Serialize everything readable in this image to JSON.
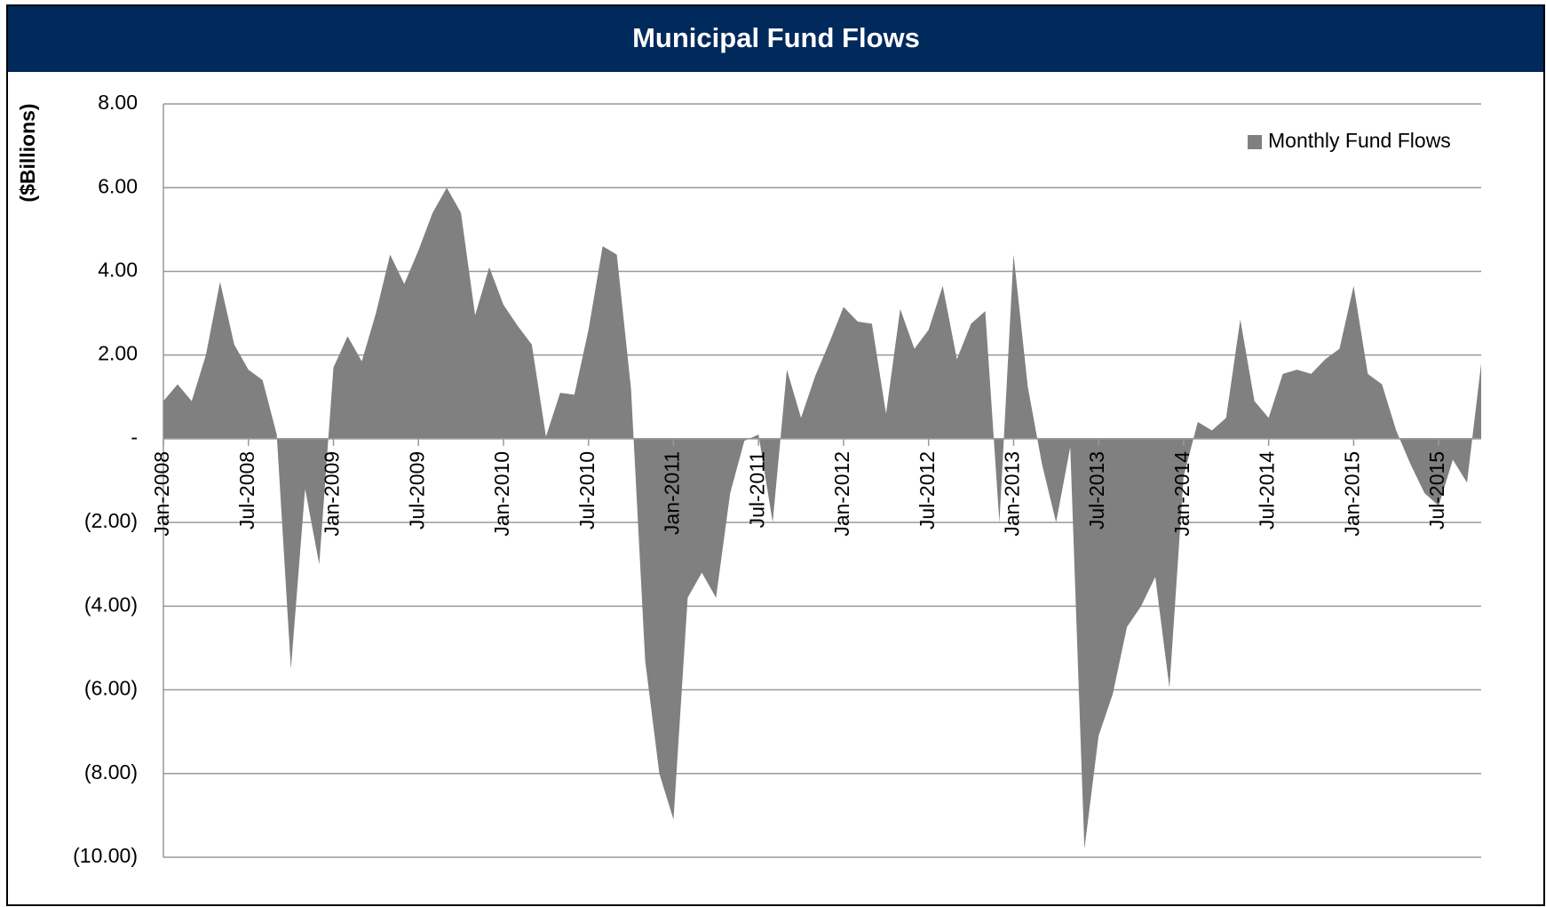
{
  "chart_data": {
    "type": "area",
    "title": "Municipal Fund Flows",
    "y_label": "($Billions)",
    "categories": [
      "Jan-2008",
      null,
      null,
      null,
      null,
      null,
      "Jul-2008",
      null,
      null,
      null,
      null,
      null,
      "Jan-2009",
      null,
      null,
      null,
      null,
      null,
      "Jul-2009",
      null,
      null,
      null,
      null,
      null,
      "Jan-2010",
      null,
      null,
      null,
      null,
      null,
      "Jul-2010",
      null,
      null,
      null,
      null,
      null,
      "Jan-2011",
      null,
      null,
      null,
      null,
      null,
      "Jul-2011",
      null,
      null,
      null,
      null,
      null,
      "Jan-2012",
      null,
      null,
      null,
      null,
      null,
      "Jul-2012",
      null,
      null,
      null,
      null,
      null,
      "Jan-2013",
      null,
      null,
      null,
      null,
      null,
      "Jul-2013",
      null,
      null,
      null,
      null,
      null,
      "Jan-2014",
      null,
      null,
      null,
      null,
      null,
      "Jul-2014",
      null,
      null,
      null,
      null,
      null,
      "Jan-2015",
      null,
      null,
      null,
      null,
      null,
      "Jul-2015",
      null,
      null,
      null
    ],
    "series": [
      {
        "name": "Monthly Fund Flows",
        "color": "#808080",
        "values": [
          0.9,
          1.3,
          0.9,
          2.0,
          3.75,
          2.25,
          1.65,
          1.4,
          0.1,
          -5.5,
          -1.2,
          -3.0,
          1.7,
          2.45,
          1.85,
          3.0,
          4.4,
          3.7,
          4.5,
          5.4,
          6.0,
          5.4,
          2.95,
          4.1,
          3.2,
          2.7,
          2.25,
          0.05,
          1.1,
          1.05,
          2.6,
          4.6,
          4.4,
          1.2,
          -5.3,
          -8.0,
          -9.1,
          -3.8,
          -3.2,
          -3.8,
          -1.3,
          -0.05,
          0.1,
          -2.0,
          1.65,
          0.5,
          1.5,
          2.3,
          3.15,
          2.8,
          2.75,
          0.6,
          3.1,
          2.15,
          2.6,
          3.65,
          1.9,
          2.75,
          3.05,
          -2.0,
          4.4,
          1.25,
          -0.6,
          -2.0,
          -0.2,
          -9.8,
          -7.1,
          -6.1,
          -4.5,
          -4.0,
          -3.3,
          -5.95,
          -0.9,
          0.4,
          0.2,
          0.5,
          2.85,
          0.9,
          0.5,
          1.55,
          1.65,
          1.55,
          1.9,
          2.15,
          3.65,
          1.55,
          1.3,
          0.2,
          -0.6,
          -1.3,
          -1.6,
          -0.5,
          -1.05,
          1.8
        ]
      }
    ],
    "ylim": [
      -10,
      8
    ],
    "yticks": [
      {
        "value": 8,
        "label": "8.00"
      },
      {
        "value": 6,
        "label": "6.00"
      },
      {
        "value": 4,
        "label": "4.00"
      },
      {
        "value": 2,
        "label": "2.00"
      },
      {
        "value": 0,
        "label": "-"
      },
      {
        "value": -2,
        "label": "(2.00)"
      },
      {
        "value": -4,
        "label": "(4.00)"
      },
      {
        "value": -6,
        "label": "(6.00)"
      },
      {
        "value": -8,
        "label": "(8.00)"
      },
      {
        "value": -10,
        "label": "(10.00)"
      }
    ],
    "grid": true,
    "legend": "upper right"
  }
}
